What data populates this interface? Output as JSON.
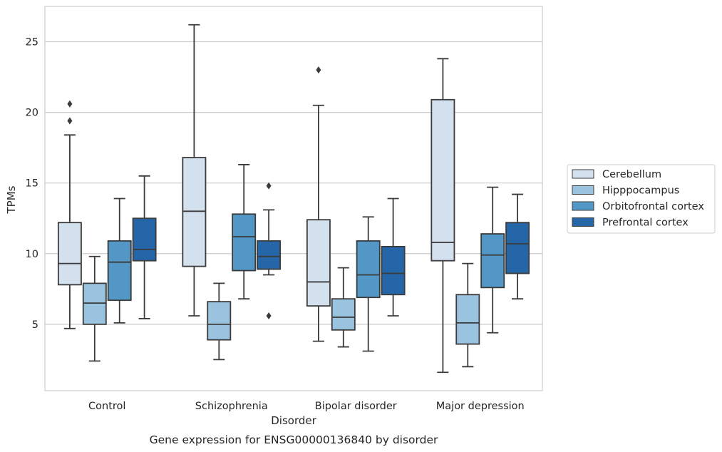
{
  "chart_data": {
    "type": "boxplot",
    "caption": "Gene expression for ENSG00000136840 by disorder",
    "xlabel": "Disorder",
    "ylabel": "TPMs",
    "ylim": [
      0.3,
      27.5
    ],
    "yticks": [
      5,
      10,
      15,
      20,
      25
    ],
    "grid": "horizontal",
    "legend_position": "outside-right",
    "categories": [
      "Control",
      "Schizophrenia",
      "Bipolar disorder",
      "Major depression"
    ],
    "series": [
      {
        "name": "Cerebellum",
        "color": "#d3e1ef",
        "boxes": [
          {
            "whisker_low": 4.7,
            "q1": 7.8,
            "median": 9.3,
            "q3": 12.2,
            "whisker_high": 18.4,
            "outliers": [
              19.4,
              20.6
            ]
          },
          {
            "whisker_low": 5.6,
            "q1": 9.1,
            "median": 13.0,
            "q3": 16.8,
            "whisker_high": 26.2,
            "outliers": []
          },
          {
            "whisker_low": 3.8,
            "q1": 6.3,
            "median": 8.0,
            "q3": 12.4,
            "whisker_high": 20.5,
            "outliers": [
              23.0
            ]
          },
          {
            "whisker_low": 1.6,
            "q1": 9.5,
            "median": 10.8,
            "q3": 20.9,
            "whisker_high": 23.8,
            "outliers": []
          }
        ]
      },
      {
        "name": "Hipppocampus",
        "color": "#9ac3df",
        "boxes": [
          {
            "whisker_low": 2.4,
            "q1": 5.0,
            "median": 6.5,
            "q3": 7.9,
            "whisker_high": 9.8,
            "outliers": []
          },
          {
            "whisker_low": 2.5,
            "q1": 3.9,
            "median": 5.0,
            "q3": 6.6,
            "whisker_high": 7.9,
            "outliers": []
          },
          {
            "whisker_low": 3.4,
            "q1": 4.6,
            "median": 5.5,
            "q3": 6.8,
            "whisker_high": 9.0,
            "outliers": []
          },
          {
            "whisker_low": 2.0,
            "q1": 3.6,
            "median": 5.1,
            "q3": 7.1,
            "whisker_high": 9.3,
            "outliers": []
          }
        ]
      },
      {
        "name": "Orbitofrontal cortex",
        "color": "#5297c6",
        "boxes": [
          {
            "whisker_low": 5.1,
            "q1": 6.7,
            "median": 9.4,
            "q3": 10.9,
            "whisker_high": 13.9,
            "outliers": []
          },
          {
            "whisker_low": 6.8,
            "q1": 8.8,
            "median": 11.2,
            "q3": 12.8,
            "whisker_high": 16.3,
            "outliers": []
          },
          {
            "whisker_low": 3.1,
            "q1": 6.9,
            "median": 8.5,
            "q3": 10.9,
            "whisker_high": 12.6,
            "outliers": []
          },
          {
            "whisker_low": 4.4,
            "q1": 7.6,
            "median": 9.9,
            "q3": 11.4,
            "whisker_high": 14.7,
            "outliers": []
          }
        ]
      },
      {
        "name": "Prefrontal cortex",
        "color": "#2566a8",
        "boxes": [
          {
            "whisker_low": 5.4,
            "q1": 9.5,
            "median": 10.3,
            "q3": 12.5,
            "whisker_high": 15.5,
            "outliers": []
          },
          {
            "whisker_low": 8.5,
            "q1": 8.9,
            "median": 9.8,
            "q3": 10.9,
            "whisker_high": 13.1,
            "outliers": [
              5.6,
              14.8
            ]
          },
          {
            "whisker_low": 5.6,
            "q1": 7.1,
            "median": 8.6,
            "q3": 10.5,
            "whisker_high": 13.9,
            "outliers": []
          },
          {
            "whisker_low": 6.8,
            "q1": 8.6,
            "median": 10.7,
            "q3": 12.2,
            "whisker_high": 14.2,
            "outliers": []
          }
        ]
      }
    ]
  },
  "colors": {
    "line": "#3b3b3b",
    "grid": "#cccccc",
    "frame": "#cccccc"
  }
}
